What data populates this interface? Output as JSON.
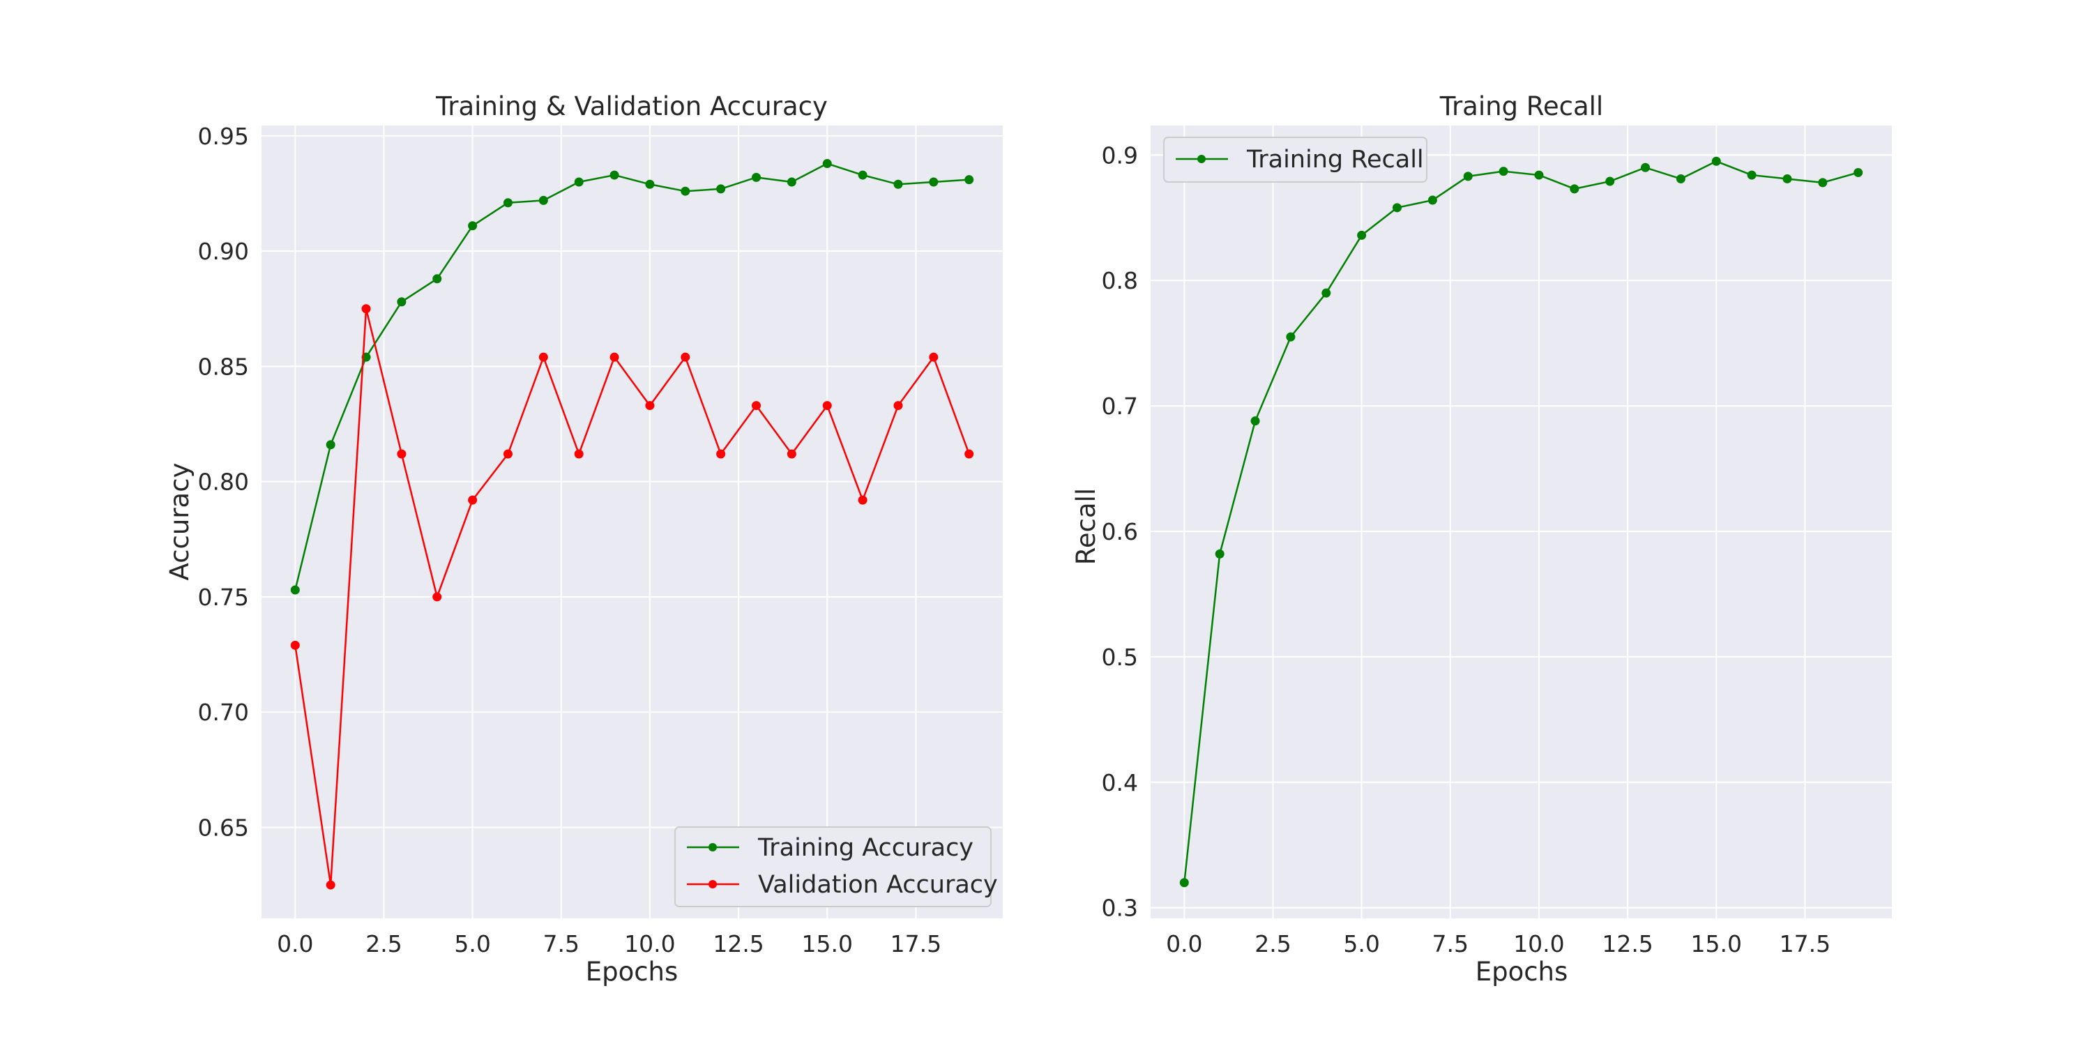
{
  "chart_data": [
    {
      "type": "line",
      "title": "Training & Validation Accuracy",
      "xlabel": "Epochs",
      "ylabel": "Accuracy",
      "xlim": [
        -0.95,
        19.95
      ],
      "ylim": [
        0.6105,
        0.9545
      ],
      "xticks": [
        0,
        2.5,
        5,
        7.5,
        10,
        12.5,
        15,
        17.5
      ],
      "xtick_labels": [
        "0.0",
        "2.5",
        "5.0",
        "7.5",
        "10.0",
        "12.5",
        "15.0",
        "17.5"
      ],
      "yticks": [
        0.65,
        0.7,
        0.75,
        0.8,
        0.85,
        0.9,
        0.95
      ],
      "ytick_labels": [
        "0.65",
        "0.70",
        "0.75",
        "0.80",
        "0.85",
        "0.90",
        "0.95"
      ],
      "grid": true,
      "legend_position": "lower-right",
      "x": [
        0,
        1,
        2,
        3,
        4,
        5,
        6,
        7,
        8,
        9,
        10,
        11,
        12,
        13,
        14,
        15,
        16,
        17,
        18,
        19
      ],
      "series": [
        {
          "name": "Training Accuracy",
          "color": "#008000",
          "values": [
            0.753,
            0.816,
            0.854,
            0.878,
            0.888,
            0.911,
            0.921,
            0.922,
            0.93,
            0.933,
            0.929,
            0.926,
            0.927,
            0.932,
            0.93,
            0.938,
            0.933,
            0.929,
            0.93,
            0.931
          ]
        },
        {
          "name": "Validation Accuracy",
          "color": "#ff0000",
          "values": [
            0.729,
            0.625,
            0.875,
            0.812,
            0.75,
            0.792,
            0.812,
            0.854,
            0.812,
            0.854,
            0.833,
            0.854,
            0.812,
            0.833,
            0.812,
            0.833,
            0.792,
            0.833,
            0.854,
            0.812
          ]
        }
      ]
    },
    {
      "type": "line",
      "title": "Traing Recall",
      "xlabel": "Epochs",
      "ylabel": "Recall",
      "xlim": [
        -0.95,
        19.95
      ],
      "ylim": [
        0.2915,
        0.9235
      ],
      "xticks": [
        0,
        2.5,
        5,
        7.5,
        10,
        12.5,
        15,
        17.5
      ],
      "xtick_labels": [
        "0.0",
        "2.5",
        "5.0",
        "7.5",
        "10.0",
        "12.5",
        "15.0",
        "17.5"
      ],
      "yticks": [
        0.3,
        0.4,
        0.5,
        0.6,
        0.7,
        0.8,
        0.9
      ],
      "ytick_labels": [
        "0.3",
        "0.4",
        "0.5",
        "0.6",
        "0.7",
        "0.8",
        "0.9"
      ],
      "grid": true,
      "legend_position": "upper-left",
      "x": [
        0,
        1,
        2,
        3,
        4,
        5,
        6,
        7,
        8,
        9,
        10,
        11,
        12,
        13,
        14,
        15,
        16,
        17,
        18,
        19
      ],
      "series": [
        {
          "name": "Training Recall",
          "color": "#008000",
          "values": [
            0.32,
            0.582,
            0.688,
            0.755,
            0.79,
            0.836,
            0.858,
            0.864,
            0.883,
            0.887,
            0.884,
            0.873,
            0.879,
            0.89,
            0.881,
            0.895,
            0.884,
            0.881,
            0.878,
            0.886
          ]
        }
      ]
    }
  ]
}
